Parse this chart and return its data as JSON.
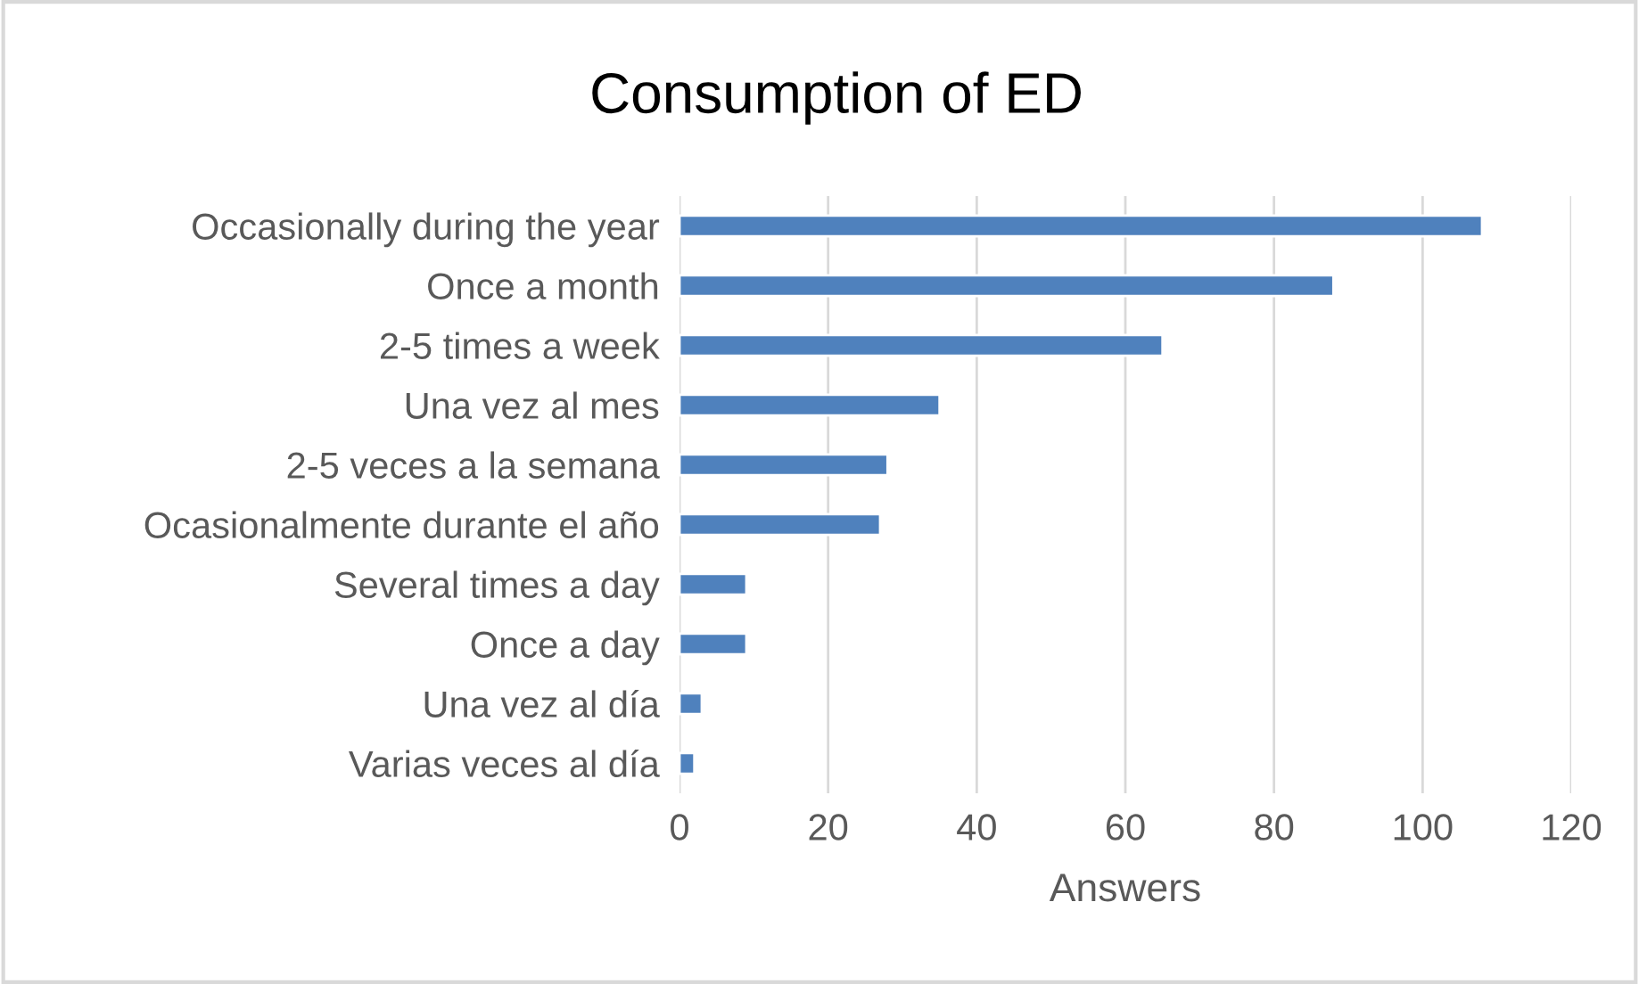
{
  "chart_data": {
    "type": "bar",
    "orientation": "horizontal",
    "title": "Consumption of ED",
    "xlabel": "Answers",
    "categories": [
      "Occasionally during the year",
      "Once a month",
      "2-5 times a week",
      "Una vez al mes",
      "2-5 veces a la semana",
      "Ocasionalmente durante el año",
      "Several times a day",
      "Once a day",
      "Una vez al día",
      "Varias veces al día"
    ],
    "values": [
      108,
      88,
      65,
      35,
      28,
      27,
      9,
      9,
      3,
      2
    ],
    "color": "#4f81bd",
    "xlim": [
      0,
      120
    ],
    "xticks": [
      0,
      20,
      40,
      60,
      80,
      100,
      120
    ],
    "grid": "x",
    "legend": false
  }
}
